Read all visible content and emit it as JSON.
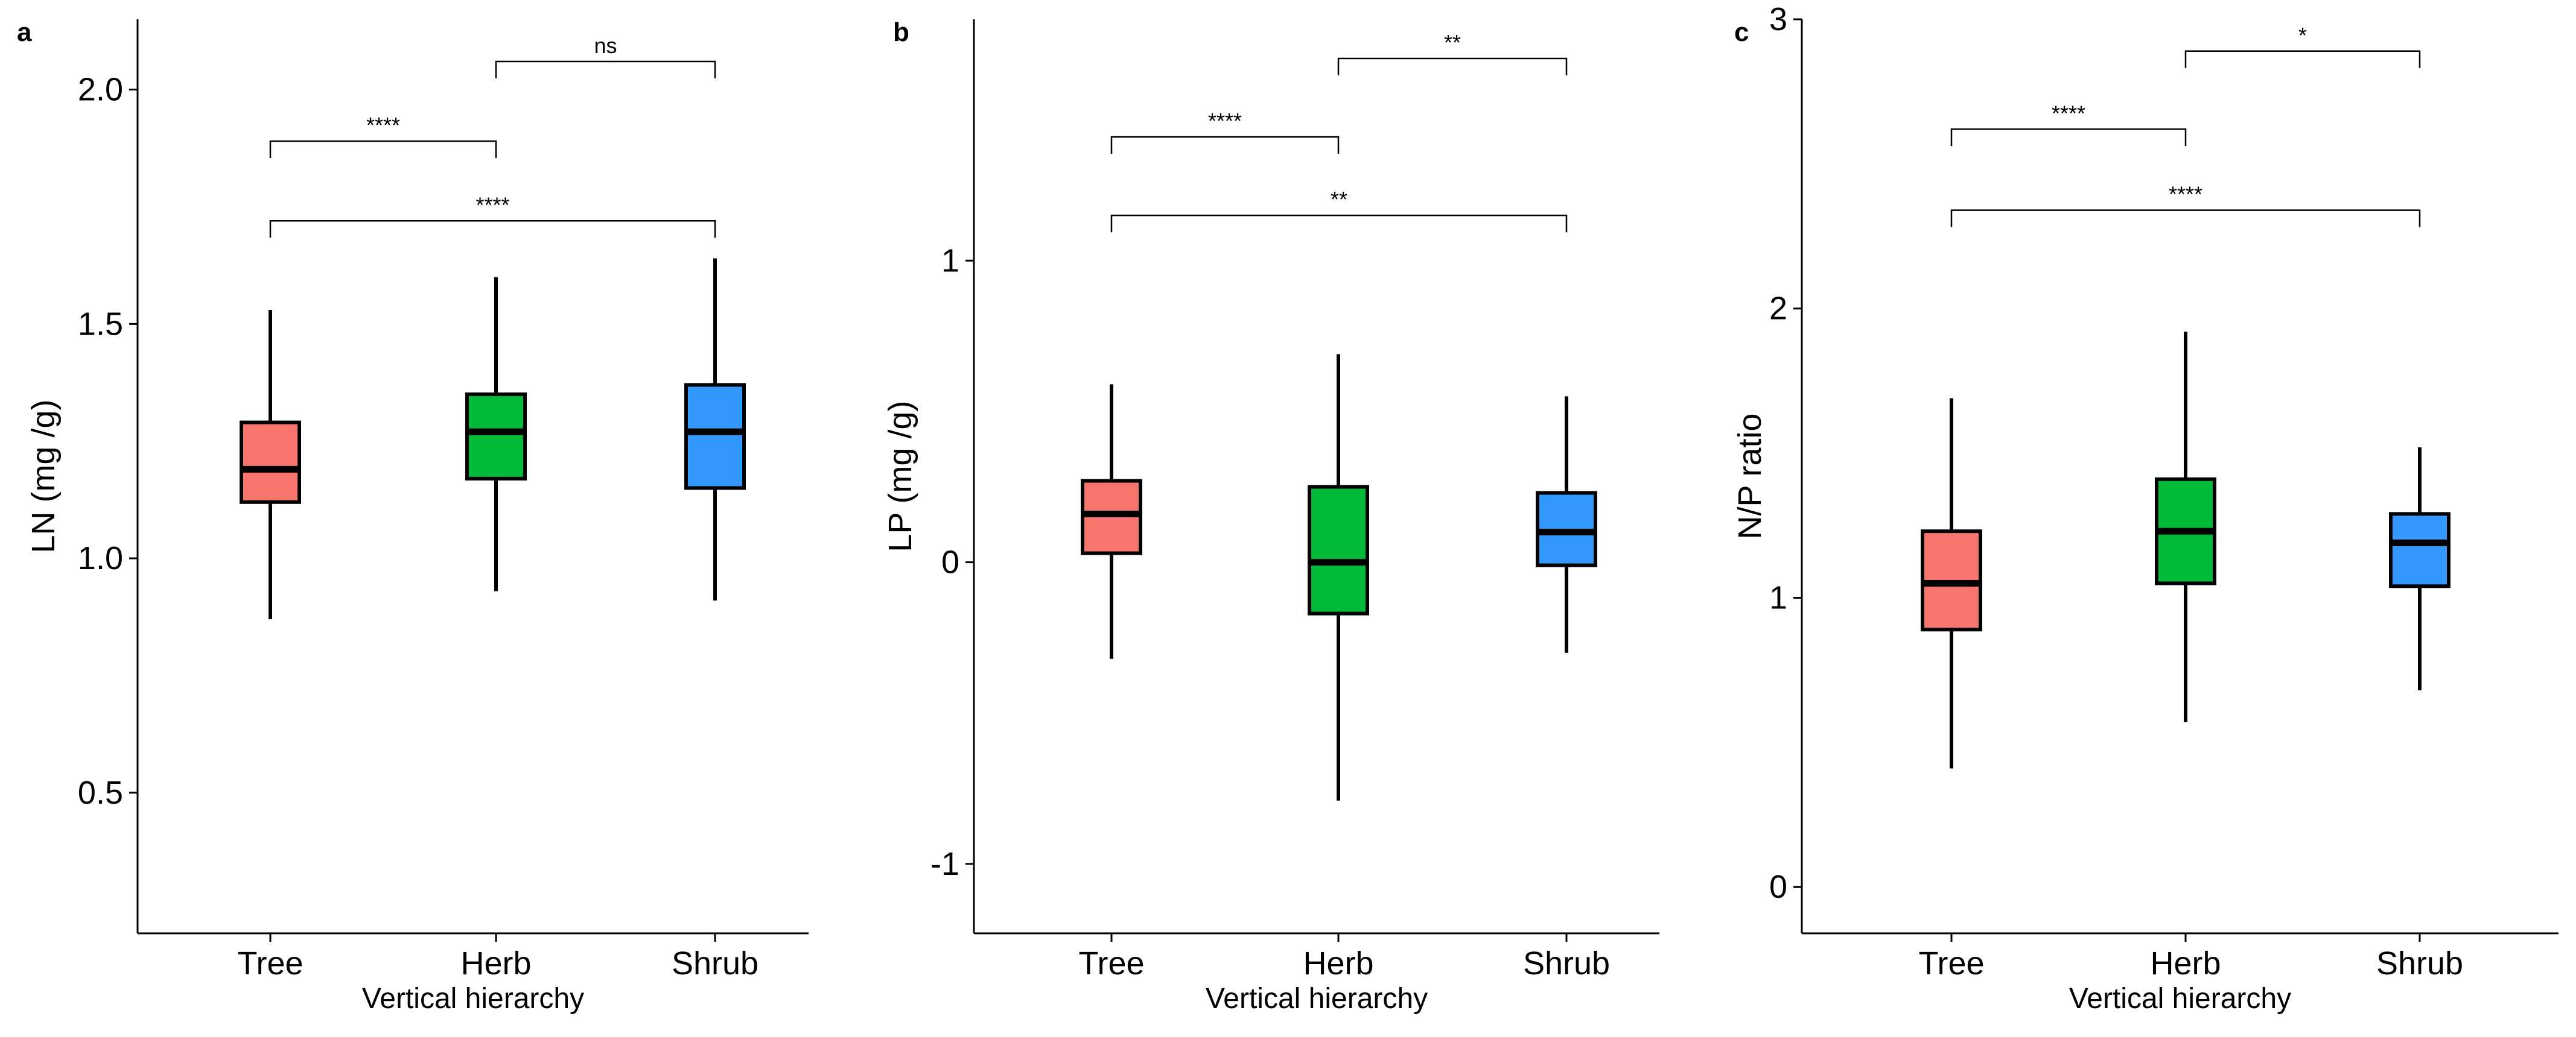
{
  "figure": {
    "xlabel": "Vertical hierarchy",
    "categories": [
      "Tree",
      "Herb",
      "Shrub"
    ],
    "colors": {
      "Tree": "#F8766D",
      "Herb": "#00BA38",
      "Shrub": "#3399FF"
    }
  },
  "chart_data": [
    {
      "type": "box",
      "panel_label": "a",
      "title": "",
      "xlabel": "Vertical hierarchy",
      "ylabel": "LN (mg /g)",
      "categories": [
        "Tree",
        "Herb",
        "Shrub"
      ],
      "ylim": [
        0.2,
        2.15
      ],
      "yticks": [
        0.5,
        1.0,
        1.5,
        2.0
      ],
      "ytick_labels": [
        "0.5",
        "1.0",
        "1.5",
        "2.0"
      ],
      "boxes": [
        {
          "category": "Tree",
          "whisker_low": 0.87,
          "q1": 1.12,
          "median": 1.19,
          "q3": 1.29,
          "whisker_high": 1.53
        },
        {
          "category": "Herb",
          "whisker_low": 0.93,
          "q1": 1.17,
          "median": 1.27,
          "q3": 1.35,
          "whisker_high": 1.6
        },
        {
          "category": "Shrub",
          "whisker_low": 0.91,
          "q1": 1.15,
          "median": 1.27,
          "q3": 1.37,
          "whisker_high": 1.64
        }
      ],
      "comparisons": [
        {
          "from": "Tree",
          "to": "Herb",
          "label": "****",
          "y": 1.89
        },
        {
          "from": "Herb",
          "to": "Shrub",
          "label": "ns",
          "y": 2.06
        },
        {
          "from": "Tree",
          "to": "Shrub",
          "label": "****",
          "y": 1.72
        }
      ],
      "grid": false,
      "legend": "none"
    },
    {
      "type": "box",
      "panel_label": "b",
      "title": "",
      "xlabel": "Vertical hierarchy",
      "ylabel": "LP (mg /g)",
      "categories": [
        "Tree",
        "Herb",
        "Shrub"
      ],
      "ylim": [
        -1.23,
        1.8
      ],
      "yticks": [
        -1,
        0,
        1
      ],
      "ytick_labels": [
        "-1",
        "0",
        "1"
      ],
      "boxes": [
        {
          "category": "Tree",
          "whisker_low": -0.32,
          "q1": 0.03,
          "median": 0.16,
          "q3": 0.27,
          "whisker_high": 0.59
        },
        {
          "category": "Herb",
          "whisker_low": -0.79,
          "q1": -0.17,
          "median": 0.0,
          "q3": 0.25,
          "whisker_high": 0.69
        },
        {
          "category": "Shrub",
          "whisker_low": -0.3,
          "q1": -0.01,
          "median": 0.1,
          "q3": 0.23,
          "whisker_high": 0.55
        }
      ],
      "comparisons": [
        {
          "from": "Tree",
          "to": "Herb",
          "label": "****",
          "y": 1.41
        },
        {
          "from": "Herb",
          "to": "Shrub",
          "label": "**",
          "y": 1.67
        },
        {
          "from": "Tree",
          "to": "Shrub",
          "label": "**",
          "y": 1.15
        }
      ],
      "grid": false,
      "legend": "none"
    },
    {
      "type": "box",
      "panel_label": "c",
      "title": "",
      "xlabel": "Vertical hierarchy",
      "ylabel": "N/P  ratio",
      "categories": [
        "Tree",
        "Herb",
        "Shrub"
      ],
      "ylim": [
        -0.16,
        3.0
      ],
      "yticks": [
        0,
        1,
        2,
        3
      ],
      "ytick_labels": [
        "0",
        "1",
        "2",
        "3"
      ],
      "boxes": [
        {
          "category": "Tree",
          "whisker_low": 0.41,
          "q1": 0.89,
          "median": 1.05,
          "q3": 1.23,
          "whisker_high": 1.69
        },
        {
          "category": "Herb",
          "whisker_low": 0.57,
          "q1": 1.05,
          "median": 1.23,
          "q3": 1.41,
          "whisker_high": 1.92
        },
        {
          "category": "Shrub",
          "whisker_low": 0.68,
          "q1": 1.04,
          "median": 1.19,
          "q3": 1.29,
          "whisker_high": 1.52
        }
      ],
      "comparisons": [
        {
          "from": "Tree",
          "to": "Herb",
          "label": "****",
          "y": 2.62
        },
        {
          "from": "Herb",
          "to": "Shrub",
          "label": "*",
          "y": 2.89
        },
        {
          "from": "Tree",
          "to": "Shrub",
          "label": "****",
          "y": 2.34
        }
      ],
      "grid": false,
      "legend": "none"
    }
  ]
}
